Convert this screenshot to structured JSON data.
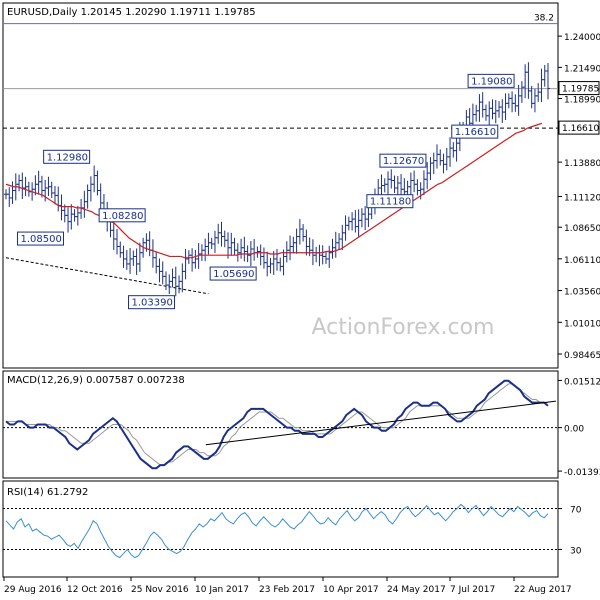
{
  "chart_data": [
    {
      "type": "candlestick",
      "panel": "price",
      "title": "EURUSD,Daily",
      "ohlc": [
        "1.20145",
        "1.20290",
        "1.19711",
        "1.19785"
      ],
      "ylim": [
        0.975,
        1.265
      ],
      "y_ticks": [
        "1.24000",
        "1.21490",
        "1.18990",
        "1.13880",
        "1.11120",
        "1.08650",
        "1.06110",
        "1.03560",
        "1.01010",
        "0.98465"
      ],
      "last_price": "1.19785",
      "hline_label": "1.16610",
      "hline_value": 1.1661,
      "fib_label": "38.2",
      "fib_value": 1.25,
      "annotations": [
        {
          "text": "1.12980",
          "value": 1.1298
        },
        {
          "text": "1.08500",
          "value": 1.085
        },
        {
          "text": "1.03390",
          "value": 1.0339
        },
        {
          "text": "1.08280",
          "value": 1.0828
        },
        {
          "text": "1.05690",
          "value": 1.0569
        },
        {
          "text": "1.12670",
          "value": 1.1267
        },
        {
          "text": "1.11180",
          "value": 1.1118
        },
        {
          "text": "1.19080",
          "value": 1.1908
        },
        {
          "text": "1.16610",
          "value": 1.1661
        }
      ],
      "close_series": [
        1.113,
        1.11,
        1.116,
        1.121,
        1.124,
        1.118,
        1.119,
        1.115,
        1.117,
        1.121,
        1.123,
        1.116,
        1.118,
        1.119,
        1.114,
        1.112,
        1.104,
        1.1,
        1.096,
        1.091,
        1.097,
        1.095,
        1.098,
        1.102,
        1.107,
        1.116,
        1.121,
        1.128,
        1.116,
        1.106,
        1.098,
        1.091,
        1.084,
        1.077,
        1.071,
        1.066,
        1.061,
        1.057,
        1.061,
        1.063,
        1.057,
        1.066,
        1.074,
        1.076,
        1.068,
        1.062,
        1.055,
        1.051,
        1.047,
        1.04,
        1.043,
        1.046,
        1.039,
        1.043,
        1.051,
        1.061,
        1.064,
        1.058,
        1.061,
        1.065,
        1.068,
        1.071,
        1.074,
        1.073,
        1.078,
        1.082,
        1.079,
        1.076,
        1.07,
        1.074,
        1.068,
        1.066,
        1.07,
        1.067,
        1.064,
        1.069,
        1.066,
        1.067,
        1.063,
        1.058,
        1.055,
        1.057,
        1.061,
        1.058,
        1.055,
        1.063,
        1.068,
        1.071,
        1.074,
        1.079,
        1.085,
        1.079,
        1.071,
        1.068,
        1.064,
        1.066,
        1.064,
        1.063,
        1.061,
        1.066,
        1.07,
        1.074,
        1.077,
        1.082,
        1.088,
        1.091,
        1.093,
        1.087,
        1.092,
        1.097,
        1.093,
        1.097,
        1.104,
        1.112,
        1.118,
        1.12,
        1.121,
        1.125,
        1.124,
        1.118,
        1.122,
        1.117,
        1.115,
        1.119,
        1.124,
        1.121,
        1.116,
        1.117,
        1.125,
        1.13,
        1.138,
        1.14,
        1.145,
        1.14,
        1.137,
        1.143,
        1.15,
        1.148,
        1.154,
        1.163,
        1.167,
        1.175,
        1.17,
        1.177,
        1.18,
        1.187,
        1.181,
        1.176,
        1.182,
        1.178,
        1.18,
        1.183,
        1.179,
        1.186,
        1.19,
        1.186,
        1.184,
        1.192,
        1.199,
        1.211,
        1.196,
        1.186,
        1.192,
        1.195,
        1.205,
        1.212,
        1.198
      ],
      "ma_series": [
        1.121,
        1.12,
        1.119,
        1.119,
        1.118,
        1.117,
        1.116,
        1.115,
        1.114,
        1.113,
        1.112,
        1.11,
        1.108,
        1.106,
        1.104,
        1.103,
        1.103,
        1.103,
        1.103,
        1.102,
        1.102,
        1.101,
        1.1,
        1.099,
        1.097,
        1.096,
        1.094,
        1.093,
        1.091,
        1.09,
        1.087,
        1.084,
        1.081,
        1.078,
        1.076,
        1.074,
        1.072,
        1.07,
        1.069,
        1.068,
        1.067,
        1.066,
        1.065,
        1.064,
        1.063,
        1.063,
        1.063,
        1.063,
        1.062,
        1.062,
        1.062,
        1.063,
        1.064,
        1.064,
        1.064,
        1.064,
        1.064,
        1.064,
        1.064,
        1.064,
        1.064,
        1.064,
        1.064,
        1.065,
        1.065,
        1.065,
        1.065,
        1.066,
        1.066,
        1.066,
        1.066,
        1.065,
        1.065,
        1.065,
        1.066,
        1.066,
        1.066,
        1.066,
        1.066,
        1.066,
        1.066,
        1.066,
        1.066,
        1.066,
        1.066,
        1.066,
        1.067,
        1.067,
        1.067,
        1.068,
        1.069,
        1.071,
        1.073,
        1.075,
        1.077,
        1.079,
        1.081,
        1.083,
        1.085,
        1.087,
        1.089,
        1.091,
        1.093,
        1.095,
        1.097,
        1.099,
        1.101,
        1.103,
        1.105,
        1.107,
        1.109,
        1.111,
        1.113,
        1.115,
        1.117,
        1.119,
        1.121,
        1.122,
        1.124,
        1.126,
        1.128,
        1.13,
        1.132,
        1.134,
        1.136,
        1.138,
        1.14,
        1.142,
        1.144,
        1.146,
        1.148,
        1.15,
        1.152,
        1.154,
        1.156,
        1.158,
        1.16,
        1.162,
        1.163,
        1.164,
        1.166,
        1.167,
        1.168,
        1.169,
        1.17
      ],
      "support_line": {
        "from_index": 0,
        "from_value": 1.062,
        "to_index": 62,
        "to_value": 1.033
      }
    },
    {
      "type": "line",
      "panel": "macd",
      "title": "MACD(12,26,9) 0.007587 0.007238",
      "y_ticks": [
        "0.01512",
        "0.00",
        "-0.01393"
      ],
      "ylim": [
        -0.0155,
        0.0175
      ],
      "series": [
        {
          "values": [
            0.002,
            0.001,
            0.001,
            0.002,
            0.002,
            0.001,
            0.0,
            0.0,
            0.001,
            0.001,
            0.001,
            0.0,
            0.0,
            -0.001,
            -0.002,
            -0.003,
            -0.005,
            -0.006,
            -0.007,
            -0.006,
            -0.005,
            -0.004,
            -0.002,
            -0.001,
            0.0,
            0.001,
            0.002,
            0.003,
            0.002,
            0.0,
            -0.002,
            -0.004,
            -0.006,
            -0.008,
            -0.01,
            -0.011,
            -0.012,
            -0.013,
            -0.013,
            -0.012,
            -0.012,
            -0.011,
            -0.01,
            -0.008,
            -0.007,
            -0.006,
            -0.006,
            -0.007,
            -0.008,
            -0.009,
            -0.01,
            -0.01,
            -0.009,
            -0.008,
            -0.006,
            -0.003,
            -0.001,
            0.0,
            0.001,
            0.002,
            0.003,
            0.005,
            0.006,
            0.006,
            0.006,
            0.006,
            0.005,
            0.004,
            0.003,
            0.002,
            0.001,
            0.0,
            0.0,
            -0.001,
            -0.001,
            -0.002,
            -0.002,
            -0.002,
            -0.002,
            -0.003,
            -0.003,
            -0.002,
            -0.001,
            0.0,
            0.001,
            0.002,
            0.004,
            0.005,
            0.006,
            0.005,
            0.004,
            0.002,
            0.001,
            0.0,
            0.0,
            -0.001,
            -0.001,
            0.0,
            0.001,
            0.003,
            0.004,
            0.006,
            0.007,
            0.008,
            0.008,
            0.007,
            0.007,
            0.007,
            0.008,
            0.008,
            0.007,
            0.006,
            0.004,
            0.003,
            0.002,
            0.002,
            0.003,
            0.004,
            0.005,
            0.007,
            0.008,
            0.009,
            0.011,
            0.012,
            0.013,
            0.014,
            0.015,
            0.015,
            0.014,
            0.013,
            0.012,
            0.01,
            0.009,
            0.008,
            0.008,
            0.008,
            0.008,
            0.007
          ]
        },
        {
          "values": [
            0.002,
            0.002,
            0.002,
            0.002,
            0.002,
            0.001,
            0.001,
            0.001,
            0.001,
            0.001,
            0.001,
            0.001,
            0.0,
            0.0,
            -0.001,
            -0.001,
            -0.002,
            -0.003,
            -0.004,
            -0.005,
            -0.005,
            -0.005,
            -0.004,
            -0.003,
            -0.002,
            -0.001,
            0.0,
            0.001,
            0.001,
            0.001,
            0.0,
            -0.001,
            -0.003,
            -0.004,
            -0.006,
            -0.008,
            -0.009,
            -0.01,
            -0.011,
            -0.012,
            -0.012,
            -0.011,
            -0.011,
            -0.01,
            -0.009,
            -0.008,
            -0.007,
            -0.007,
            -0.007,
            -0.008,
            -0.008,
            -0.009,
            -0.009,
            -0.009,
            -0.008,
            -0.006,
            -0.005,
            -0.003,
            -0.002,
            0.0,
            0.001,
            0.002,
            0.003,
            0.004,
            0.005,
            0.005,
            0.005,
            0.005,
            0.004,
            0.003,
            0.003,
            0.002,
            0.001,
            0.0,
            0.0,
            -0.001,
            -0.001,
            -0.001,
            -0.002,
            -0.002,
            -0.002,
            -0.002,
            -0.002,
            -0.001,
            0.0,
            0.001,
            0.002,
            0.003,
            0.004,
            0.005,
            0.005,
            0.004,
            0.003,
            0.002,
            0.001,
            0.0,
            0.0,
            0.0,
            0.0,
            0.001,
            0.002,
            0.003,
            0.005,
            0.006,
            0.007,
            0.007,
            0.007,
            0.007,
            0.007,
            0.007,
            0.007,
            0.006,
            0.005,
            0.004,
            0.003,
            0.003,
            0.003,
            0.003,
            0.004,
            0.005,
            0.006,
            0.008,
            0.009,
            0.01,
            0.011,
            0.012,
            0.013,
            0.014,
            0.014,
            0.013,
            0.012,
            0.011,
            0.01,
            0.009,
            0.009,
            0.008,
            0.008,
            0.008
          ]
        }
      ],
      "trend_line": {
        "from_index": 50,
        "from_value": -0.0055,
        "to_index": 139,
        "to_value": 0.0085
      }
    },
    {
      "type": "line",
      "panel": "rsi",
      "title": "RSI(14) 61.2792",
      "y_ticks": [
        "70",
        "30"
      ],
      "ylim": [
        5,
        95
      ],
      "series": [
        {
          "values": [
            58,
            54,
            50,
            57,
            60,
            52,
            55,
            48,
            50,
            47,
            44,
            43,
            40,
            42,
            44,
            40,
            35,
            33,
            36,
            31,
            38,
            44,
            50,
            58,
            55,
            47,
            40,
            33,
            28,
            24,
            22,
            26,
            30,
            25,
            22,
            24,
            30,
            36,
            43,
            47,
            44,
            40,
            34,
            30,
            28,
            26,
            28,
            33,
            40,
            46,
            50,
            55,
            52,
            55,
            60,
            58,
            62,
            66,
            60,
            57,
            55,
            60,
            64,
            66,
            62,
            56,
            53,
            58,
            62,
            58,
            54,
            52,
            55,
            60,
            56,
            52,
            50,
            54,
            57,
            62,
            67,
            63,
            58,
            55,
            56,
            61,
            57,
            54,
            60,
            64,
            68,
            62,
            58,
            61,
            67,
            70,
            65,
            60,
            64,
            67,
            64,
            58,
            55,
            60,
            66,
            70,
            72,
            66,
            62,
            65,
            69,
            73,
            68,
            64,
            66,
            62,
            58,
            62,
            67,
            70,
            74,
            71,
            66,
            70,
            73,
            68,
            63,
            67,
            72,
            68,
            64,
            62,
            66,
            70,
            67,
            72,
            69,
            66,
            62,
            66,
            68,
            63,
            61,
            65
          ]
        }
      ]
    }
  ],
  "x_ticks": [
    "29 Aug 2016",
    "12 Oct 2016",
    "25 Nov 2016",
    "10 Jan 2017",
    "23 Feb 2017",
    "10 Apr 2017",
    "24 May 2017",
    "7 Jul 2017",
    "22 Aug 2017"
  ],
  "watermark": "ActionForex.com",
  "colors": {
    "candle": "#1a2f8a",
    "ma": "#cc1f1f",
    "macd": "#1a2f8a",
    "signal": "#999999",
    "rsi": "#3a8fd6",
    "grid": "#c8c8c8",
    "axis": "#000000",
    "label_bg": "#ffffff"
  }
}
